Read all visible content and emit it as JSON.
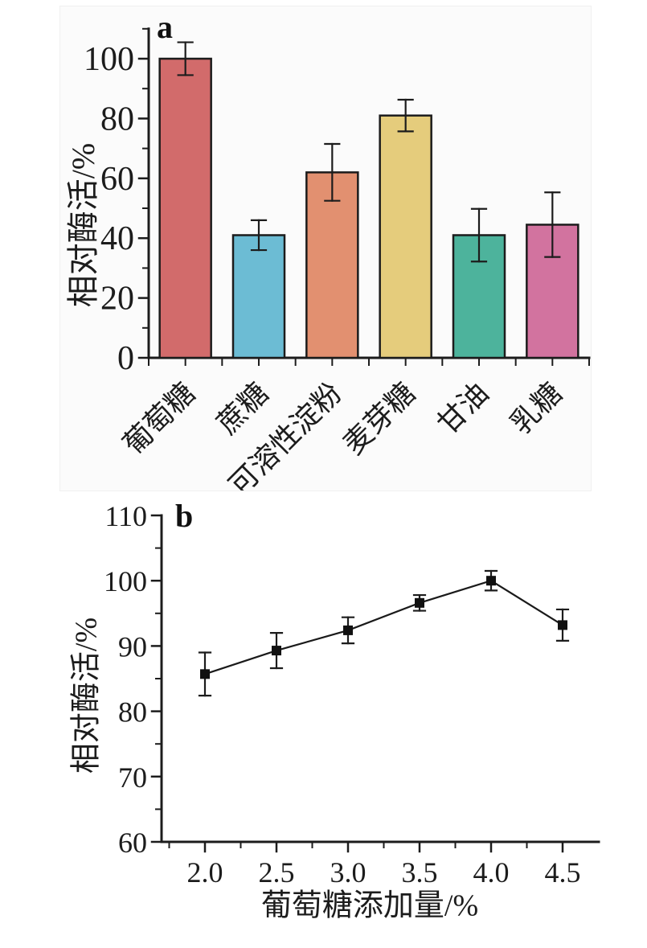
{
  "figure": {
    "description": "Two-panel enzyme activity figure",
    "text_color": "#1c1c1c",
    "axis_color": "#1c1c1c"
  },
  "chart_data": [
    {
      "id": "panel-a",
      "type": "bar",
      "panel_label": "a",
      "ylabel": "相对酶活/%",
      "xlabel": "",
      "categories": [
        "葡萄糖",
        "蔗糖",
        "可溶性淀粉",
        "麦芽糖",
        "甘油",
        "乳糖"
      ],
      "values": [
        100,
        41,
        62,
        81,
        41,
        44.5
      ],
      "errors": [
        5.5,
        5,
        9.5,
        5.3,
        8.8,
        10.8
      ],
      "bar_colors": [
        "#d26b6b",
        "#6cbcd4",
        "#e29070",
        "#e5cc7c",
        "#4db39c",
        "#d2739f"
      ],
      "ylim": [
        0,
        110
      ],
      "yticks": [
        0,
        20,
        40,
        60,
        80,
        100
      ],
      "y_minor_step": 10,
      "grid": false,
      "legend": "none"
    },
    {
      "id": "panel-b",
      "type": "line",
      "panel_label": "b",
      "ylabel": "相对酶活/%",
      "xlabel": "葡萄糖添加量/%",
      "x": [
        2.0,
        2.5,
        3.0,
        3.5,
        4.0,
        4.5
      ],
      "values": [
        85.7,
        89.3,
        92.4,
        96.6,
        100,
        93.2
      ],
      "errors": [
        3.3,
        2.7,
        2.0,
        1.2,
        1.5,
        2.4
      ],
      "xticks": [
        "2.0",
        "2.5",
        "3.0",
        "3.5",
        "4.0",
        "4.5"
      ],
      "xtick_values": [
        2.0,
        2.5,
        3.0,
        3.5,
        4.0,
        4.5
      ],
      "x_minor_values": [
        1.75,
        2.25,
        2.75,
        3.25,
        3.75,
        4.25
      ],
      "ylim": [
        60,
        110
      ],
      "yticks": [
        60,
        70,
        80,
        90,
        100,
        110
      ],
      "y_minor_step": 5,
      "marker": "filled-square",
      "line_color": "#1a1a1a",
      "grid": false,
      "legend": "none"
    }
  ]
}
